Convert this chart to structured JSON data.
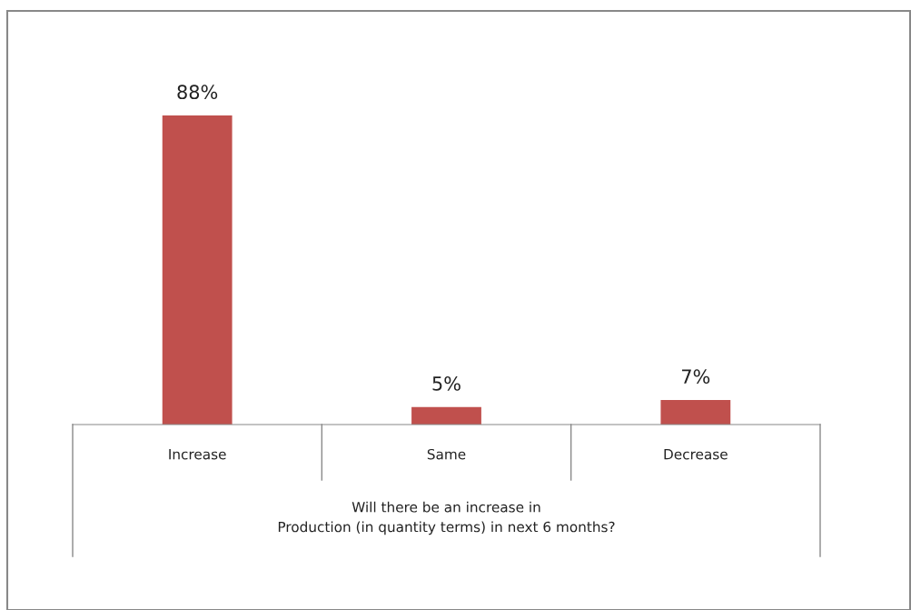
{
  "chart_data": {
    "type": "bar",
    "categories": [
      "Increase",
      "Same",
      "Decrease"
    ],
    "values": [
      88,
      5,
      7
    ],
    "value_labels": [
      "88%",
      "5%",
      "7%"
    ],
    "color": "#c0504d",
    "xlabel": "Will there be an increase in\nProduction (in quantity terms) in next 6 months?"
  }
}
